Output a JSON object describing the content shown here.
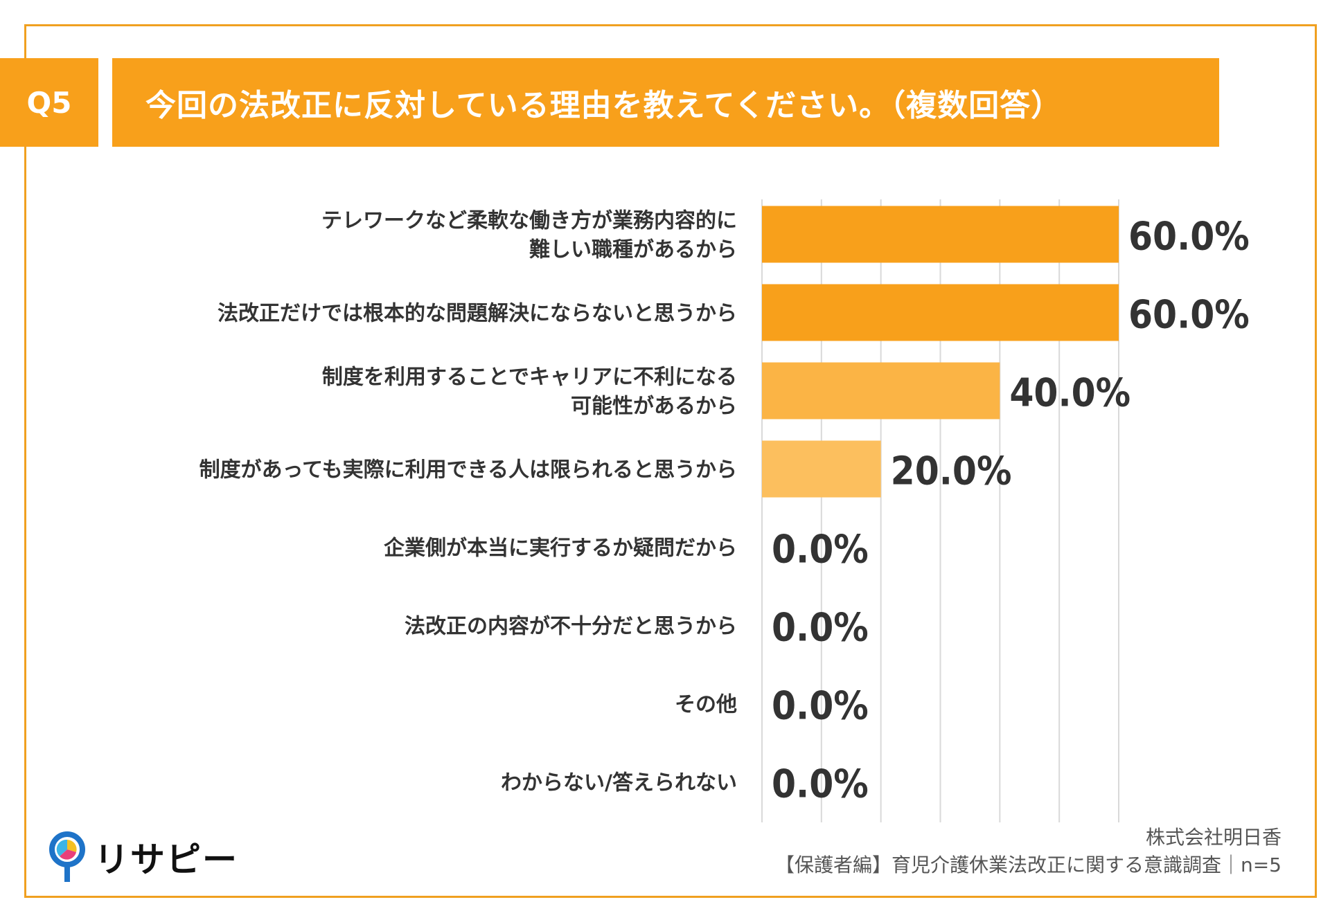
{
  "header": {
    "question_no": "Q5",
    "question": "今回の法改正に反対している理由を教えてください。（複数回答）"
  },
  "chart_data": {
    "type": "bar",
    "orientation": "horizontal",
    "categories": [
      [
        "テレワークなど柔軟な働き方が業務内容的に",
        "難しい職種があるから"
      ],
      [
        "法改正だけでは根本的な問題解決にならないと思うから"
      ],
      [
        "制度を利用することでキャリアに不利になる",
        "可能性があるから"
      ],
      [
        "制度があっても実際に利用できる人は限られると思うから"
      ],
      [
        "企業側が本当に実行するか疑問だから"
      ],
      [
        "法改正の内容が不十分だと思うから"
      ],
      [
        "その他"
      ],
      [
        "わからない/答えられない"
      ]
    ],
    "values": [
      60.0,
      60.0,
      40.0,
      20.0,
      0.0,
      0.0,
      0.0,
      0.0
    ],
    "value_labels": [
      "60.0%",
      "60.0%",
      "40.0%",
      "20.0%",
      "0.0%",
      "0.0%",
      "0.0%",
      "0.0%"
    ],
    "xlim": [
      0,
      60
    ],
    "gridlines": [
      0,
      10,
      20,
      30,
      40,
      50,
      60
    ],
    "grid": true,
    "bar_colors": [
      "#f8a01b",
      "#f8a01b",
      "#fbb445",
      "#fcbf5e",
      "#f8a01b",
      "#f8a01b",
      "#f8a01b",
      "#f8a01b"
    ],
    "label_color": "#333333"
  },
  "footer": {
    "logo_text": "リサピー",
    "company": "株式会社明日香",
    "survey": "【保護者編】育児介護休業法改正に関する意識調査｜n=5"
  },
  "colors": {
    "accent": "#f8a01b",
    "frame": "#f0a020"
  }
}
